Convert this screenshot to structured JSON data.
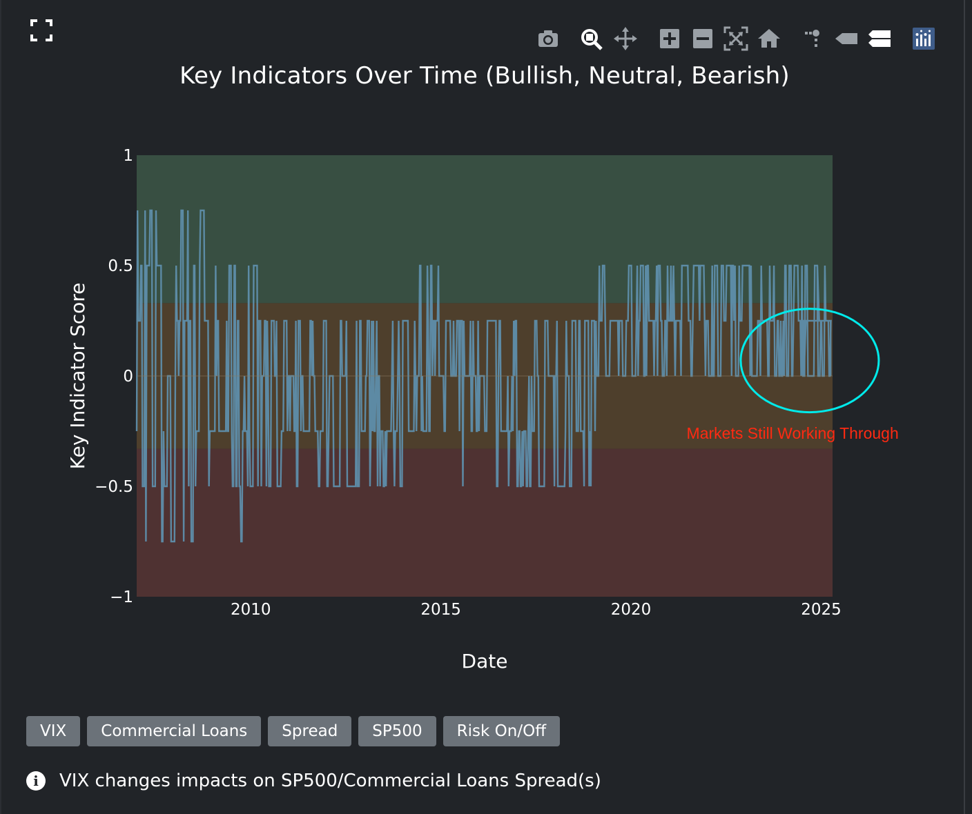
{
  "title": "Key Indicators Over Time (Bullish, Neutral, Bearish)",
  "modebar": {
    "icons": [
      "camera-icon",
      "zoom-icon",
      "pan-icon",
      "zoom-in-icon",
      "zoom-out-icon",
      "autoscale-icon",
      "reset-axes-icon",
      "spike-lines-icon",
      "hover-closest-icon",
      "hover-compare-icon",
      "plotly-logo-icon"
    ]
  },
  "buttons": [
    "VIX",
    "Commercial Loans",
    "Spread",
    "SP500",
    "Risk On/Off"
  ],
  "info": {
    "text": "VIX changes impacts on SP500/Commercial Loans Spread(s)"
  },
  "colors": {
    "background": "#212428",
    "bullish_zone": "#384f42",
    "neutral_zone": "#4e3f2c",
    "bearish_zone": "#4f3232",
    "line": "#5e8eab",
    "line_bullish": "#39a0c8",
    "line_bearish": "#6a7eaa",
    "circle": "#00eaea",
    "annotation": "#ff2a12"
  },
  "chart_data": {
    "type": "line",
    "title": "Key Indicators Over Time (Bullish, Neutral, Bearish)",
    "xlabel": "Date",
    "ylabel": "Key Indicator Score",
    "xlim": [
      2007.0,
      2025.3
    ],
    "ylim": [
      -1,
      1
    ],
    "xticks": [
      2010,
      2015,
      2020,
      2025
    ],
    "xtick_labels": [
      "2010",
      "2015",
      "2020",
      "2025"
    ],
    "yticks": [
      1,
      0.5,
      0,
      -0.5,
      -1
    ],
    "ytick_labels": [
      "1",
      "0.5",
      "0",
      "−0.5",
      "−1"
    ],
    "zones": [
      {
        "name": "Bullish",
        "y0": 0.33,
        "y1": 1
      },
      {
        "name": "Neutral",
        "y0": -0.33,
        "y1": 0.33
      },
      {
        "name": "Bearish",
        "y0": -1,
        "y1": -0.33
      }
    ],
    "segments": [
      {
        "x0": 2007.0,
        "x1": 2008.9,
        "levels": [
          -0.75,
          -0.5,
          -0.25,
          0,
          0.25,
          0.5,
          0.75
        ]
      },
      {
        "x0": 2008.9,
        "x1": 2010.5,
        "levels": [
          -0.75,
          -0.5,
          -0.25,
          0,
          0.25,
          0.5
        ]
      },
      {
        "x0": 2010.5,
        "x1": 2014.0,
        "levels": [
          -0.5,
          -0.25,
          0,
          0.25
        ]
      },
      {
        "x0": 2014.0,
        "x1": 2015.2,
        "levels": [
          -0.25,
          0,
          0.25,
          0.5
        ]
      },
      {
        "x0": 2015.2,
        "x1": 2019.1,
        "levels": [
          -0.5,
          -0.25,
          0,
          0.25
        ]
      },
      {
        "x0": 2019.1,
        "x1": 2023.0,
        "levels": [
          0,
          0.25,
          0.5
        ]
      },
      {
        "x0": 2023.0,
        "x1": 2025.3,
        "levels": [
          0,
          0.25,
          0.5
        ]
      }
    ],
    "annotations": [
      {
        "text": "Markets Still Working Through",
        "x": 2024.25,
        "y": -0.26,
        "shape": "ellipse",
        "center": [
          2024.7,
          0.07
        ]
      }
    ]
  }
}
